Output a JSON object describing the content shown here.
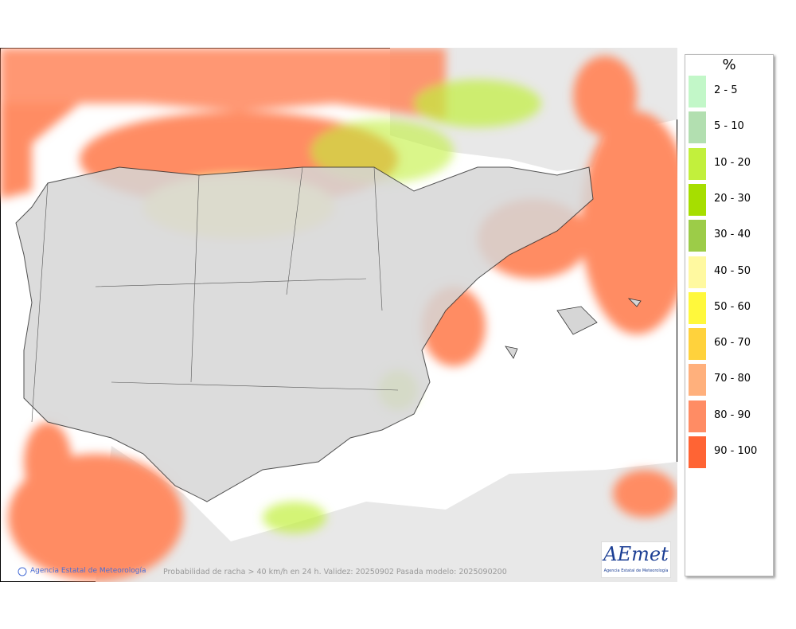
{
  "map": {
    "caption": "Probabilidad de racha > 40 km/h en 24 h. Validez: 20250902 Pasada modelo: 2025090200",
    "credit": "Agencia Estatal de Meteorología",
    "logo": {
      "name": "AEmet",
      "subtitle": "Agencia Estatal de Meteorología"
    },
    "legend": {
      "title": "%",
      "entries": [
        {
          "label": "2 - 5",
          "color": "#c2f7c8"
        },
        {
          "label": "5 - 10",
          "color": "#b2dfb0"
        },
        {
          "label": "10 - 20",
          "color": "#c2f03c"
        },
        {
          "label": "20 - 30",
          "color": "#a6de00"
        },
        {
          "label": "30 - 40",
          "color": "#9ccc48"
        },
        {
          "label": "40 - 50",
          "color": "#fff9a0"
        },
        {
          "label": "50 - 60",
          "color": "#fff83c"
        },
        {
          "label": "60 - 70",
          "color": "#ffd23c"
        },
        {
          "label": "70 - 80",
          "color": "#ffb07c"
        },
        {
          "label": "80 - 90",
          "color": "#ff8c64"
        },
        {
          "label": "90 - 100",
          "color": "#ff6434"
        }
      ]
    }
  }
}
